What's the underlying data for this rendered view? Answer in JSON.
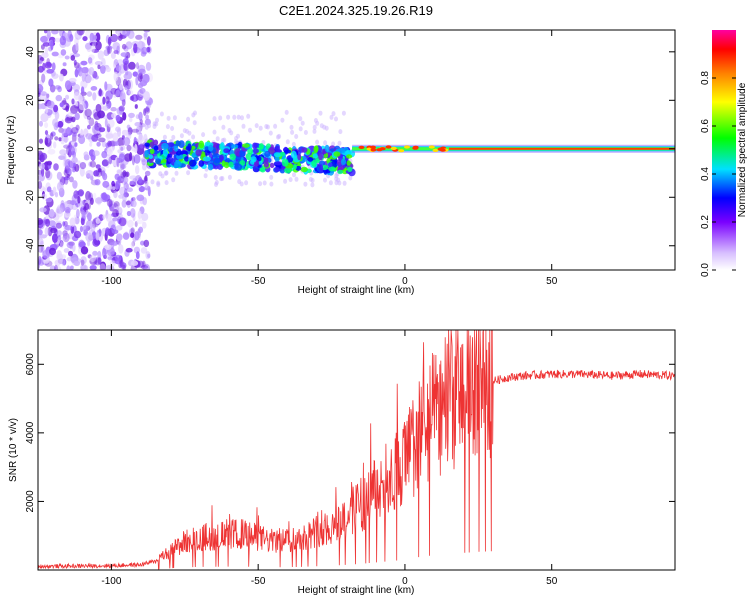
{
  "title": "C2E1.2024.325.19.26.R19",
  "chart_data": [
    {
      "type": "heatmap",
      "xlabel": "Height of straight line (km)",
      "ylabel": "Frequency (Hz)",
      "xlim": [
        -125,
        92
      ],
      "ylim": [
        -50,
        49
      ],
      "xticks": [
        -100,
        -50,
        0,
        50
      ],
      "yticks": [
        -40,
        -20,
        0,
        20,
        40
      ],
      "colorbar": {
        "label": "Normalized spectral amplitude",
        "range": [
          0,
          1
        ],
        "ticks": [
          0.0,
          0.2,
          0.4,
          0.6,
          0.8
        ]
      },
      "grid": false
    },
    {
      "type": "line",
      "xlabel": "Height of straight line (km)",
      "ylabel": "SNR (10 * v/v)",
      "xlim": [
        -125,
        92
      ],
      "ylim": [
        0,
        7000
      ],
      "xticks": [
        -100,
        -50,
        0,
        50
      ],
      "yticks": [
        2000,
        4000,
        6000
      ],
      "color": "#ee3333",
      "series": [
        {
          "x": [
            -125,
            -100,
            -90,
            -85,
            -80,
            -75,
            -70,
            -65,
            -60,
            -55,
            -50,
            -45,
            -40,
            -35,
            -30,
            -25,
            -20,
            -15,
            -10,
            -5,
            0,
            5,
            10,
            15,
            20,
            25,
            30,
            35,
            40,
            50,
            60,
            70,
            80,
            92
          ],
          "values": [
            100,
            120,
            150,
            250,
            500,
            800,
            900,
            950,
            1000,
            1000,
            900,
            800,
            850,
            900,
            1100,
            1200,
            1500,
            1800,
            2200,
            2600,
            3000,
            3800,
            4300,
            4700,
            5000,
            5300,
            5500,
            5600,
            5650,
            5700,
            5700,
            5650,
            5700,
            5650
          ]
        }
      ],
      "grid": false
    }
  ]
}
